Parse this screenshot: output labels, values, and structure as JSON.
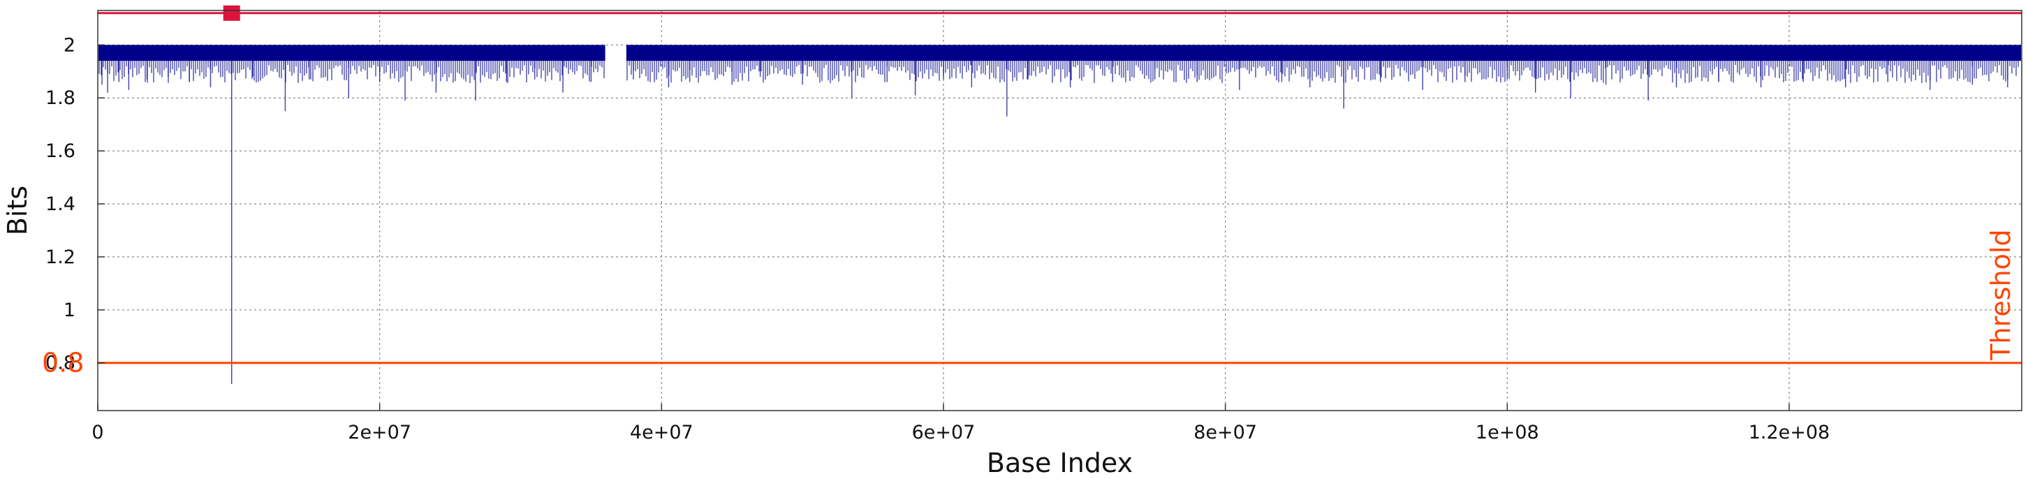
{
  "chart_data": {
    "type": "line",
    "title": "",
    "xlabel": "Base Index",
    "ylabel": "Bits",
    "xlim": [
      0,
      136500000
    ],
    "ylim": [
      0.62,
      2.13
    ],
    "grid": true,
    "x_ticks": [
      {
        "value": 0,
        "label": "0"
      },
      {
        "value": 20000000,
        "label": "2e+07"
      },
      {
        "value": 40000000,
        "label": "4e+07"
      },
      {
        "value": 60000000,
        "label": "6e+07"
      },
      {
        "value": 80000000,
        "label": "8e+07"
      },
      {
        "value": 100000000,
        "label": "1e+08"
      },
      {
        "value": 120000000,
        "label": "1.2e+08"
      }
    ],
    "y_ticks": [
      {
        "value": 0.8,
        "label": "0.8"
      },
      {
        "value": 1.0,
        "label": "1"
      },
      {
        "value": 1.2,
        "label": "1.2"
      },
      {
        "value": 1.4,
        "label": "1.4"
      },
      {
        "value": 1.6,
        "label": "1.6"
      },
      {
        "value": 1.8,
        "label": "1.8"
      },
      {
        "value": 2.0,
        "label": "2"
      }
    ],
    "series": [
      {
        "color": "#00008b",
        "baseline": 2.0,
        "band_floor": 1.94,
        "gap": [
          36000000,
          37500000
        ],
        "points": [
          {
            "x": 300000,
            "y": 1.85
          },
          {
            "x": 700000,
            "y": 1.82
          },
          {
            "x": 1500000,
            "y": 1.86
          },
          {
            "x": 2200000,
            "y": 1.83
          },
          {
            "x": 3500000,
            "y": 1.87
          },
          {
            "x": 5000000,
            "y": 1.88
          },
          {
            "x": 6500000,
            "y": 1.86
          },
          {
            "x": 8000000,
            "y": 1.84
          },
          {
            "x": 9500000,
            "y": 0.72
          },
          {
            "x": 11000000,
            "y": 1.88
          },
          {
            "x": 13300000,
            "y": 1.75
          },
          {
            "x": 15000000,
            "y": 1.87
          },
          {
            "x": 17800000,
            "y": 1.8
          },
          {
            "x": 20000000,
            "y": 1.86
          },
          {
            "x": 21800000,
            "y": 1.79
          },
          {
            "x": 24000000,
            "y": 1.82
          },
          {
            "x": 26800000,
            "y": 1.79
          },
          {
            "x": 29000000,
            "y": 1.86
          },
          {
            "x": 31000000,
            "y": 1.87
          },
          {
            "x": 33000000,
            "y": 1.82
          },
          {
            "x": 35000000,
            "y": 1.86
          },
          {
            "x": 38000000,
            "y": 1.87
          },
          {
            "x": 40500000,
            "y": 1.84
          },
          {
            "x": 42000000,
            "y": 1.86
          },
          {
            "x": 45000000,
            "y": 1.85
          },
          {
            "x": 47000000,
            "y": 1.88
          },
          {
            "x": 50000000,
            "y": 1.85
          },
          {
            "x": 53500000,
            "y": 1.8
          },
          {
            "x": 56000000,
            "y": 1.86
          },
          {
            "x": 58000000,
            "y": 1.81
          },
          {
            "x": 60000000,
            "y": 1.87
          },
          {
            "x": 62000000,
            "y": 1.84
          },
          {
            "x": 64500000,
            "y": 1.73
          },
          {
            "x": 66000000,
            "y": 1.87
          },
          {
            "x": 69000000,
            "y": 1.84
          },
          {
            "x": 72000000,
            "y": 1.86
          },
          {
            "x": 75000000,
            "y": 1.87
          },
          {
            "x": 78000000,
            "y": 1.86
          },
          {
            "x": 81000000,
            "y": 1.83
          },
          {
            "x": 84000000,
            "y": 1.86
          },
          {
            "x": 86000000,
            "y": 1.84
          },
          {
            "x": 88400000,
            "y": 1.76
          },
          {
            "x": 91000000,
            "y": 1.86
          },
          {
            "x": 94000000,
            "y": 1.83
          },
          {
            "x": 97000000,
            "y": 1.86
          },
          {
            "x": 100000000,
            "y": 1.87
          },
          {
            "x": 102000000,
            "y": 1.82
          },
          {
            "x": 104500000,
            "y": 1.8
          },
          {
            "x": 107000000,
            "y": 1.85
          },
          {
            "x": 110000000,
            "y": 1.79
          },
          {
            "x": 112000000,
            "y": 1.84
          },
          {
            "x": 115000000,
            "y": 1.86
          },
          {
            "x": 118000000,
            "y": 1.84
          },
          {
            "x": 121000000,
            "y": 1.86
          },
          {
            "x": 124000000,
            "y": 1.84
          },
          {
            "x": 127000000,
            "y": 1.86
          },
          {
            "x": 130000000,
            "y": 1.83
          },
          {
            "x": 133000000,
            "y": 1.85
          },
          {
            "x": 135500000,
            "y": 1.84
          }
        ]
      }
    ],
    "threshold": {
      "value": 0.8,
      "label": "Threshold",
      "value_label": "0.8",
      "color": "#ff4500"
    },
    "top_line": {
      "value": 2.12,
      "color": "#dc143c"
    },
    "top_marker": {
      "x": 9500000,
      "y": 2.12,
      "color": "#dc143c"
    }
  }
}
